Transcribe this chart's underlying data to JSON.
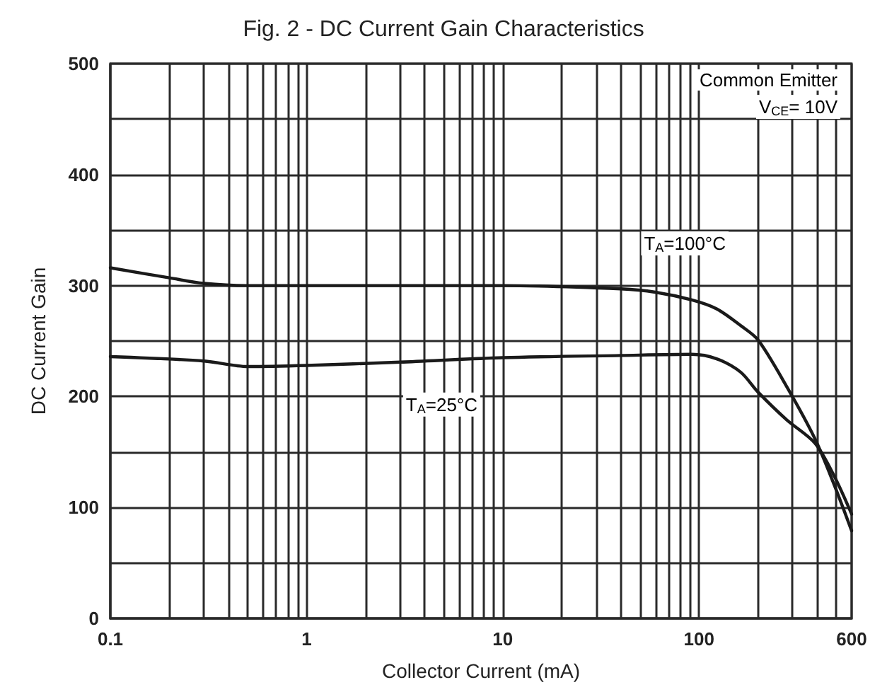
{
  "chart_data": {
    "type": "line",
    "title": "Fig. 2 - DC Current Gain Characteristics",
    "xlabel": "Collector Current (mA)",
    "ylabel": "DC Current Gain",
    "log": "x",
    "grid": true,
    "marker": "none",
    "line_style": "solid",
    "xlim": [
      0.1,
      600
    ],
    "ylim": [
      0,
      500
    ],
    "xticks": [
      0.1,
      {
        "value": 0.2,
        "label": null
      },
      {
        "value": 0.3,
        "label": null
      },
      {
        "value": 0.4,
        "label": null
      },
      {
        "value": 0.5,
        "label": null
      },
      {
        "value": 0.6,
        "label": null
      },
      {
        "value": 0.7,
        "label": null
      },
      {
        "value": 0.8,
        "label": null
      },
      {
        "value": 0.9,
        "label": null
      },
      1,
      {
        "value": 2,
        "label": null
      },
      {
        "value": 3,
        "label": null
      },
      {
        "value": 4,
        "label": null
      },
      {
        "value": 5,
        "label": null
      },
      {
        "value": 6,
        "label": null
      },
      {
        "value": 7,
        "label": null
      },
      {
        "value": 8,
        "label": null
      },
      {
        "value": 9,
        "label": null
      },
      10,
      {
        "value": 20,
        "label": null
      },
      {
        "value": 30,
        "label": null
      },
      {
        "value": 40,
        "label": null
      },
      {
        "value": 50,
        "label": null
      },
      {
        "value": 60,
        "label": null
      },
      {
        "value": 70,
        "label": null
      },
      {
        "value": 80,
        "label": null
      },
      {
        "value": 90,
        "label": null
      },
      100,
      {
        "value": 200,
        "label": null
      },
      {
        "value": 300,
        "label": null
      },
      {
        "value": 400,
        "label": null
      },
      {
        "value": 500,
        "label": null
      },
      600
    ],
    "yticks": [
      0,
      {
        "value": 50,
        "label": null
      },
      100,
      {
        "value": 150,
        "label": null
      },
      200,
      {
        "value": 250,
        "label": null
      },
      300,
      {
        "value": 350,
        "label": null
      },
      400,
      {
        "value": 450,
        "label": null
      },
      500
    ],
    "series": [
      {
        "name": "T$_{A}$=100°C",
        "color": "#1a1a1a",
        "x": [
          0.1,
          0.2,
          0.3,
          0.5,
          1,
          3,
          10,
          40,
          60,
          92,
          123,
          163,
          200,
          280,
          390,
          490,
          600
        ],
        "values": [
          316,
          307,
          302,
          300,
          300,
          300,
          300,
          297,
          294,
          287,
          279,
          264,
          251,
          209,
          162,
          120,
          79
        ]
      },
      {
        "name": "T$_{A}$=25°C",
        "color": "#1a1a1a",
        "x": [
          0.1,
          0.3,
          0.5,
          1,
          3,
          10,
          40,
          92,
          123,
          163,
          200,
          280,
          390,
          490,
          600
        ],
        "values": [
          236,
          232,
          227,
          228,
          231,
          235,
          237,
          238,
          234,
          222,
          204,
          179,
          158,
          128,
          94
        ]
      }
    ],
    "annotations": [
      "Common Emitter",
      "V$_{CE}$= 10V"
    ]
  }
}
